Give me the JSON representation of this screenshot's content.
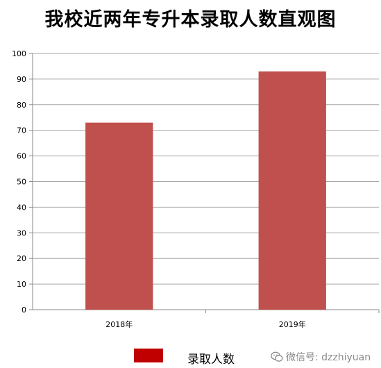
{
  "chart_data": {
    "type": "bar",
    "title": "我校近两年专升本录取人数直观图",
    "categories": [
      "2018年",
      "2019年"
    ],
    "series": [
      {
        "name": "录取人数",
        "values": [
          73,
          93
        ],
        "color": "#C0504D"
      }
    ],
    "ylim": [
      0,
      100
    ],
    "yticks": [
      "0",
      "10",
      "20",
      "30",
      "40",
      "50",
      "60",
      "70",
      "80",
      "90",
      "100"
    ],
    "xlabel": "",
    "ylabel": "",
    "grid": true,
    "legend": {
      "position": "bottom",
      "entries": [
        "录取人数"
      ]
    }
  },
  "watermark": {
    "text": "微信号: dzzhiyuan",
    "icon": "wechat-icon"
  }
}
